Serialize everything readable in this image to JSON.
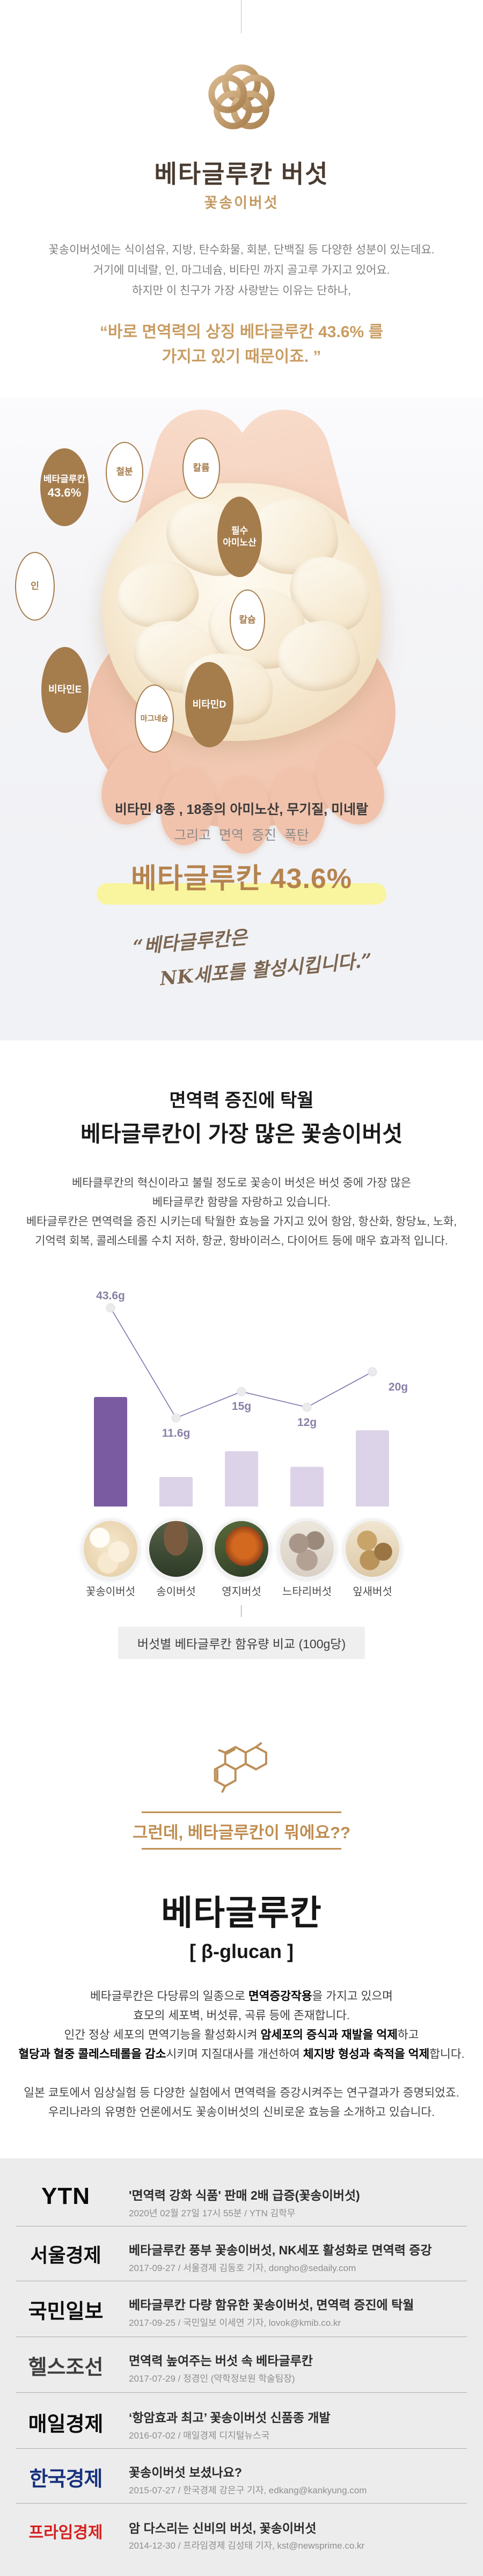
{
  "header": {
    "title": "베타글루칸 버섯",
    "subtitle": "꽃송이버섯",
    "logo_icon": "flower-knot-icon"
  },
  "intro": {
    "line1": "꽃송이버섯에는 식이섬유, 지방, 탄수화물, 회분, 단백질 등 다양한 성분이 있는데요.",
    "line2": "거기에 미네랄, 인, 마그네슘, 비타민 까지 골고루 가지고 있어요.",
    "line3": "하지만 이 친구가 가장 사랑받는 이유는 단하나,",
    "quote_line1": [
      {
        "t": "“바로  "
      },
      {
        "t": "면역력의 상징 베타글루칸 43.6%",
        "b": true
      },
      {
        "t": " 를"
      }
    ],
    "quote_line2": [
      {
        "t": "가지고 있기 때문이죠. ”"
      }
    ]
  },
  "hero": {
    "bubbles": [
      {
        "label": "베타글루칸",
        "label2": "43.6%",
        "style": "filled"
      },
      {
        "label": "철분",
        "style": "outline"
      },
      {
        "label": "칼륨",
        "style": "outline"
      },
      {
        "label": "필수",
        "label2": "아미노산",
        "style": "filled"
      },
      {
        "label": "인",
        "style": "outline"
      },
      {
        "label": "칼슘",
        "style": "outline"
      },
      {
        "label": "비타민E",
        "style": "filled"
      },
      {
        "label": "마그네슘",
        "style": "outline"
      },
      {
        "label": "비타민D",
        "style": "filled"
      }
    ],
    "summary_line1": "비타민 8종 , 18종의 아미노산, 무기질, 미네랄",
    "summary_line2": "그리고 면역 증진 폭탄",
    "highlight_text": "베타글루칸 43.6%",
    "handwriting_line1": "“베타글루칸은",
    "handwriting_line2": "NK세포를 활성시킵니다.”"
  },
  "section2": {
    "heading_line1": "면역력 증진에 탁월",
    "heading_line2": "베타글루칸이 가장 많은 꽃송이버섯",
    "para_line1": "베타클루칸의 혁신이라고 불릴 정도로 꽃송이 버섯은 버섯 중에 가장 많은",
    "para_line2": "베타글루칸 함량을 자랑하고 있습니다.",
    "para_line3": "베타글루칸은 면역력을 증진 시키는데 탁월한 효능을 가지고 있어 항암, 항산화, 항당뇨, 노화,",
    "para_line4": "기억력 회복, 콜레스테롤 수치 저하, 항균, 항바이러스, 다이어트 등에 매우 효과적 입니다."
  },
  "chart_data": {
    "type": "bar",
    "overlay": "line",
    "categories": [
      "꽃송이버섯",
      "송이버섯",
      "영지버섯",
      "느타리버섯",
      "잎새버섯"
    ],
    "series": [
      {
        "name": "베타글루칸 함유량(100g당)",
        "values": [
          43.6,
          11.6,
          15,
          12,
          20
        ],
        "unit": "g"
      }
    ],
    "value_labels": [
      "43.6g",
      "11.6g",
      "15g",
      "12g",
      "20g"
    ],
    "title": "버섯별 베타글루칸 함유량 비교 (100g당)",
    "xlabel": "",
    "ylabel": "",
    "ylim": [
      0,
      50
    ],
    "grid": false,
    "legend": false,
    "bar_colors": [
      "#7a5ba1",
      "#ddd3e8",
      "#ddd3e8",
      "#ddd3e8",
      "#ddd3e8"
    ],
    "line_color": "#7f6fae"
  },
  "section3": {
    "molecule_icon": "hexagon-molecule-icon",
    "divider_heading": "그런데, 베타글루칸이 뭐에요??",
    "title": "베타글루칸",
    "title_en": "[ β-glucan ]",
    "para1_line1": [
      {
        "t": "베타글루칸은 다당류의 일종으로 "
      },
      {
        "t": "면역증강작용",
        "b": true
      },
      {
        "t": "을 가지고 있으며"
      }
    ],
    "para1_line2": [
      {
        "t": "효모의 세포벽, 버섯류, 곡류 등에 존재합니다."
      }
    ],
    "para1_line3": [
      {
        "t": "인간 정상 세포의 면역기능을 활성화시켜 "
      },
      {
        "t": "암세포의 증식과 재발을 억제",
        "b": true
      },
      {
        "t": "하고"
      }
    ],
    "para1_line4": [
      {
        "t": "혈당과 혈중 콜레스테롤을 감소",
        "b": true
      },
      {
        "t": "시키며 지질대사를 개선하여 "
      },
      {
        "t": "체지방 형성과 축적을 억제",
        "b": true
      },
      {
        "t": "합니다."
      }
    ],
    "para2_line1": "일본 쿄토에서 임상실험 등 다양한 실험에서 면역력을 증강시켜주는 연구결과가 증명되었죠.",
    "para2_line2": "우리나라의 유명한 언론에서도 꽃송이버섯의 신비로운 효능을 소개하고 있습니다."
  },
  "news": {
    "rows": [
      {
        "outlet": "YTN",
        "color": "#0a0a0a",
        "headline": "'면역력 강화 식품' 판매 2배 급증(꽃송이버섯)",
        "byline": "2020년 02월 27일 17시 55분 / YTN 김학무"
      },
      {
        "outlet": "서울경제",
        "color": "#0d0d0d",
        "headline": "베타글루칸 풍부 꽃송이버섯, NK세포 활성화로 면역력 증강",
        "byline": "2017-09-27 / 서울경제 김동호 기자, dongho@sedaily.com"
      },
      {
        "outlet": "국민일보",
        "color": "#0d0d0d",
        "headline": "베타글루칸 다량 함유한 꽃송이버섯, 면역력 증진에 탁월",
        "byline": "2017-09-25 / 국민일보 이세연 기자, lovok@kmib.co.kr"
      },
      {
        "outlet": "헬스조선",
        "color": "#3d3d3d",
        "headline": "면역력 높여주는 버섯 속 베타글루칸",
        "byline": "2017-07-29 / 정경인 (약학정보원 학술팀장)"
      },
      {
        "outlet": "매일경제",
        "color": "#0a0a0a",
        "headline": "‘항암효과 최고’ 꽃송이버섯 신품종 개발",
        "byline": "2016-07-02 / 매일경제 디지털뉴스국"
      },
      {
        "outlet": "한국경제",
        "color": "#17317d",
        "headline": "꽃송이버섯 보셨나요?",
        "byline": "2015-07-27 / 한국경제 강은구 기자, edkang@kankyung.com"
      },
      {
        "outlet": "프라임경제",
        "color": "#d6201f",
        "headline": "암 다스리는 신비의 버섯, 꽃송이버섯",
        "byline": "2014-12-30 / 프라임경제 김성태 기자, kst@newsprime.co.kr"
      }
    ]
  }
}
